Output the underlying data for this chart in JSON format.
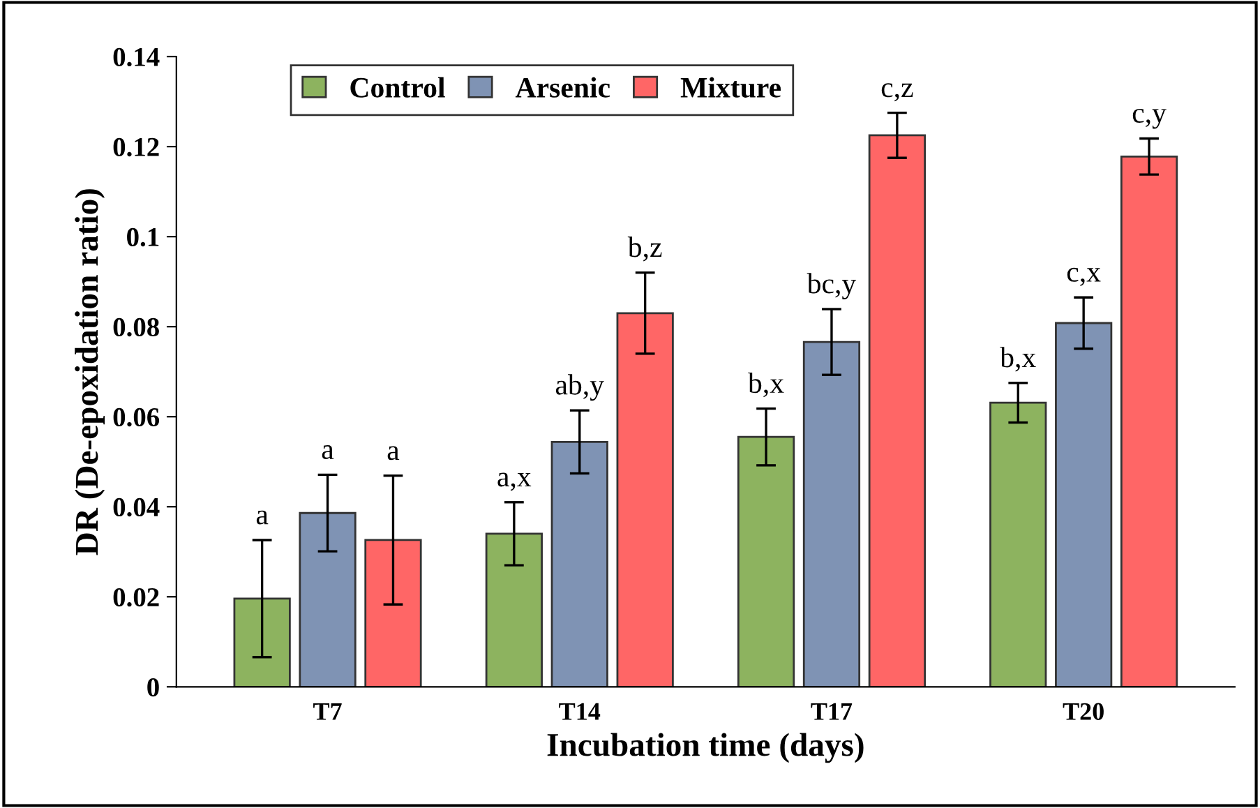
{
  "chart_data": {
    "type": "bar",
    "xlabel": "Incubation time (days)",
    "ylabel": "DR (De-epoxidation ratio)",
    "categories": [
      "T7",
      "T14",
      "T17",
      "T20"
    ],
    "series": [
      {
        "name": "Control",
        "color": "#8db35f",
        "values": [
          0.0196,
          0.034,
          0.0555,
          0.0631
        ],
        "errors": [
          0.013,
          0.007,
          0.0063,
          0.0044
        ],
        "value_labels": [
          "a",
          "a,x",
          "b,x",
          "b,x"
        ]
      },
      {
        "name": "Arsenic",
        "color": "#7f93b4",
        "values": [
          0.0386,
          0.0544,
          0.0766,
          0.0808
        ],
        "errors": [
          0.0085,
          0.007,
          0.0073,
          0.0057
        ],
        "value_labels": [
          "a",
          "ab,y",
          "bc,y",
          "c,x"
        ]
      },
      {
        "name": "Mixture",
        "color": "#ff6666",
        "values": [
          0.0326,
          0.083,
          0.1225,
          0.1178
        ],
        "errors": [
          0.0143,
          0.009,
          0.005,
          0.004
        ],
        "value_labels": [
          "a",
          "b,z",
          "c,z",
          "c,y"
        ]
      }
    ],
    "ylim": [
      0,
      0.14
    ],
    "yticks": [
      0,
      0.02,
      0.04,
      0.06,
      0.08,
      {
        "value": 0.1,
        "label": "0.1"
      },
      0.12,
      0.14
    ],
    "legend": "top left",
    "grid": false
  }
}
